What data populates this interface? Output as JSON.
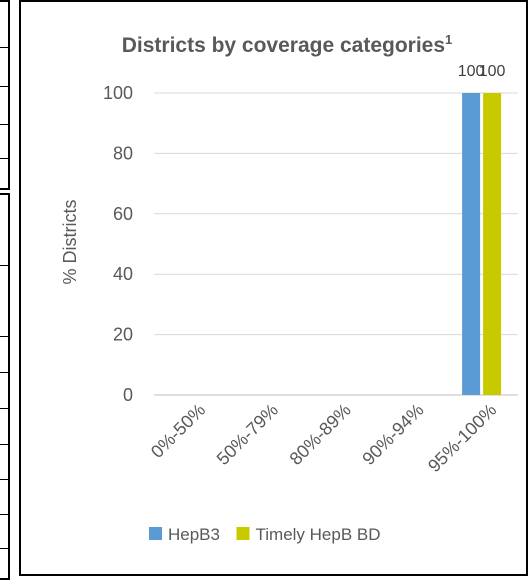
{
  "chart_data": {
    "type": "bar",
    "title": "Districts by coverage categories",
    "title_superscript": "1",
    "ylabel": "% Districts",
    "xlabel": "",
    "ylim": [
      0,
      100
    ],
    "yticks": [
      0,
      20,
      40,
      60,
      80,
      100
    ],
    "categories": [
      "0%-50%",
      "50%-79%",
      "80%-89%",
      "90%-94%",
      "95%-100%"
    ],
    "series": [
      {
        "name": "HepB3",
        "color": "#5b9bd5",
        "values": [
          0,
          0,
          0,
          0,
          100
        ]
      },
      {
        "name": "Timely HepB BD",
        "color": "#c9c900",
        "values": [
          0,
          0,
          0,
          0,
          100
        ]
      }
    ],
    "data_labels": [
      "100",
      "100"
    ],
    "grid": true,
    "legend_position": "bottom"
  }
}
